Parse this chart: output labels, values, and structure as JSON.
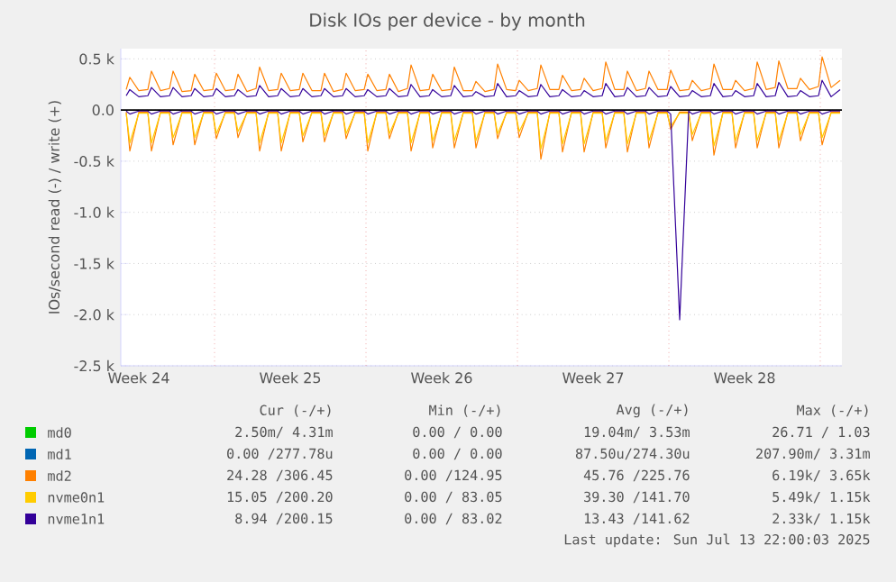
{
  "chart_data": {
    "type": "line",
    "title": "Disk IOs per device - by month",
    "ylabel": "IOs/second read (-) / write (+)",
    "x": [
      "2025-06-11T22:00",
      "2025-06-12T02:00",
      "2025-06-12T12:00",
      "2025-06-12T22:00",
      "2025-06-13T02:00",
      "2025-06-13T12:00",
      "2025-06-13T22:00",
      "2025-06-14T02:00",
      "2025-06-14T12:00",
      "2025-06-14T22:00",
      "2025-06-15T02:00",
      "2025-06-15T12:00",
      "2025-06-15T22:00",
      "2025-06-16T02:00",
      "2025-06-16T12:00",
      "2025-06-16T22:00",
      "2025-06-17T02:00",
      "2025-06-17T12:00",
      "2025-06-17T22:00",
      "2025-06-18T02:00",
      "2025-06-18T12:00",
      "2025-06-18T22:00",
      "2025-06-19T02:00",
      "2025-06-19T12:00",
      "2025-06-19T22:00",
      "2025-06-20T02:00",
      "2025-06-20T12:00",
      "2025-06-20T22:00",
      "2025-06-21T02:00",
      "2025-06-21T12:00",
      "2025-06-21T22:00",
      "2025-06-22T02:00",
      "2025-06-22T12:00",
      "2025-06-22T22:00",
      "2025-06-23T02:00",
      "2025-06-23T12:00",
      "2025-06-23T22:00",
      "2025-06-24T02:00",
      "2025-06-24T12:00",
      "2025-06-24T22:00",
      "2025-06-25T02:00",
      "2025-06-25T12:00",
      "2025-06-25T22:00",
      "2025-06-26T02:00",
      "2025-06-26T12:00",
      "2025-06-26T22:00",
      "2025-06-27T02:00",
      "2025-06-27T12:00",
      "2025-06-27T22:00",
      "2025-06-28T02:00",
      "2025-06-28T12:00",
      "2025-06-28T22:00",
      "2025-06-29T02:00",
      "2025-06-29T12:00",
      "2025-06-29T22:00",
      "2025-06-30T02:00",
      "2025-06-30T12:00",
      "2025-06-30T22:00",
      "2025-07-01T02:00",
      "2025-07-01T12:00",
      "2025-07-01T22:00",
      "2025-07-02T02:00",
      "2025-07-02T12:00",
      "2025-07-02T22:00",
      "2025-07-03T02:00",
      "2025-07-03T12:00",
      "2025-07-03T22:00",
      "2025-07-04T02:00",
      "2025-07-04T12:00",
      "2025-07-04T22:00",
      "2025-07-05T02:00",
      "2025-07-05T12:00",
      "2025-07-05T22:00",
      "2025-07-06T02:00",
      "2025-07-06T12:00",
      "2025-07-06T22:00",
      "2025-07-07T02:00",
      "2025-07-07T12:00",
      "2025-07-07T22:00",
      "2025-07-08T02:00",
      "2025-07-08T12:00",
      "2025-07-08T22:00",
      "2025-07-09T02:00",
      "2025-07-09T12:00",
      "2025-07-09T22:00",
      "2025-07-10T02:00",
      "2025-07-10T12:00",
      "2025-07-10T22:00",
      "2025-07-11T02:00",
      "2025-07-11T12:00",
      "2025-07-11T22:00",
      "2025-07-12T02:00",
      "2025-07-12T12:00",
      "2025-07-12T22:00",
      "2025-07-13T02:00",
      "2025-07-13T12:00",
      "2025-07-13T22:00",
      "2025-07-14T02:00",
      "2025-07-14T12:00",
      "2025-07-14T22:00"
    ],
    "xlim": [
      "2025-06-11T16:00",
      "2025-07-15T00:00"
    ],
    "xticks": [
      {
        "value": "2025-06-12T12:00",
        "label": "Week 24"
      },
      {
        "value": "2025-06-16",
        "label": null
      },
      {
        "value": "2025-06-19T12:00",
        "label": "Week 25"
      },
      {
        "value": "2025-06-23",
        "label": null
      },
      {
        "value": "2025-06-26T12:00",
        "label": "Week 26"
      },
      {
        "value": "2025-06-30",
        "label": null
      },
      {
        "value": "2025-07-03T12:00",
        "label": "Week 27"
      },
      {
        "value": "2025-07-07",
        "label": null
      },
      {
        "value": "2025-07-10T12:00",
        "label": "Week 28"
      },
      {
        "value": "2025-07-14",
        "label": null
      }
    ],
    "ylim": [
      -2500,
      600
    ],
    "yticks": [
      {
        "value": 500,
        "label": "0.5 k"
      },
      {
        "value": 0,
        "label": "0.0"
      },
      {
        "value": -500,
        "label": "-0.5 k"
      },
      {
        "value": -1000,
        "label": "-1.0 k"
      },
      {
        "value": -1500,
        "label": "-1.5 k"
      },
      {
        "value": -2000,
        "label": "-2.0 k"
      },
      {
        "value": -2500,
        "label": "-2.5 k"
      }
    ],
    "grid": true,
    "legend": "bottom",
    "ref_lines": [
      {
        "axis": "y",
        "value": 0,
        "color": "#000000"
      }
    ],
    "series": [
      {
        "name": "md0",
        "color": "#00cc00",
        "values": [
          null,
          null,
          null,
          null,
          null,
          null,
          null,
          null,
          null,
          null,
          null,
          null,
          null,
          null,
          null,
          null,
          null,
          null,
          null,
          null,
          null,
          null,
          null,
          null,
          null,
          null,
          null,
          null,
          null,
          null,
          null,
          null,
          null,
          null,
          null,
          null,
          null,
          null,
          null,
          null,
          null,
          null,
          null,
          null,
          null,
          null,
          null,
          null,
          null,
          null,
          null,
          null,
          null,
          null,
          null,
          null,
          null,
          null,
          null,
          null,
          null,
          null,
          null,
          null,
          null,
          null,
          null,
          null,
          null,
          null,
          null,
          null,
          null,
          null,
          null,
          null,
          null,
          null,
          null,
          null,
          null,
          null,
          null,
          null,
          null,
          null,
          null,
          null,
          null,
          null,
          null,
          null,
          null,
          null,
          null,
          null,
          null,
          null,
          null,
          null
        ]
      },
      {
        "name": "md1",
        "color": "#0066b3",
        "values": [
          null,
          null,
          null,
          null,
          null,
          null,
          null,
          null,
          null,
          null,
          null,
          null,
          null,
          null,
          null,
          null,
          null,
          null,
          null,
          null,
          null,
          null,
          null,
          null,
          null,
          null,
          null,
          null,
          null,
          null,
          null,
          null,
          null,
          null,
          null,
          null,
          null,
          null,
          null,
          null,
          null,
          null,
          null,
          null,
          null,
          null,
          null,
          null,
          null,
          null,
          null,
          null,
          null,
          null,
          null,
          null,
          null,
          null,
          null,
          null,
          null,
          null,
          null,
          null,
          null,
          null,
          null,
          null,
          null,
          null,
          null,
          null,
          null,
          null,
          null,
          null,
          null,
          null,
          null,
          null,
          null,
          null,
          null,
          null,
          null,
          null,
          null,
          null,
          null,
          null,
          null,
          null,
          null,
          null,
          null,
          null,
          null,
          null,
          null,
          null
        ]
      },
      {
        "name": "md2",
        "color": "#ff8000",
        "values": [
          200,
          320,
          190,
          200,
          380,
          190,
          210,
          380,
          180,
          190,
          350,
          190,
          200,
          360,
          190,
          200,
          350,
          180,
          210,
          420,
          190,
          200,
          360,
          190,
          200,
          360,
          190,
          190,
          360,
          180,
          200,
          360,
          190,
          200,
          350,
          190,
          200,
          350,
          180,
          210,
          440,
          190,
          200,
          350,
          190,
          200,
          420,
          190,
          190,
          280,
          180,
          200,
          450,
          200,
          190,
          290,
          190,
          210,
          440,
          200,
          200,
          340,
          190,
          200,
          310,
          190,
          210,
          470,
          200,
          200,
          380,
          190,
          210,
          380,
          200,
          200,
          390,
          190,
          200,
          290,
          190,
          210,
          450,
          200,
          200,
          290,
          190,
          210,
          470,
          200,
          220,
          480,
          210,
          210,
          310,
          200,
          230,
          520,
          220,
          290
        ]
      },
      {
        "color": "#ff8000",
        "values": [
          -20,
          -400,
          -20,
          -20,
          -400,
          -20,
          -20,
          -340,
          -20,
          -20,
          -340,
          -20,
          -20,
          -280,
          -20,
          -20,
          -270,
          -20,
          -20,
          -400,
          -20,
          -20,
          -400,
          -20,
          -20,
          -310,
          -20,
          -20,
          -310,
          -20,
          -20,
          -280,
          -20,
          -20,
          -400,
          -20,
          -20,
          -280,
          -20,
          -20,
          -400,
          -20,
          -20,
          -370,
          -20,
          -20,
          -370,
          -20,
          -20,
          -370,
          -20,
          -20,
          -280,
          -20,
          -20,
          -270,
          -20,
          -20,
          -480,
          -20,
          -20,
          -410,
          -20,
          -20,
          -410,
          -20,
          -20,
          -370,
          -20,
          -20,
          -410,
          -20,
          -20,
          -370,
          -20,
          -20,
          -190,
          -20,
          -20,
          -300,
          -20,
          -20,
          -440,
          -20,
          -20,
          -370,
          -20,
          -20,
          -370,
          -20,
          -20,
          -370,
          -20,
          -20,
          -300,
          -20,
          -20,
          -340,
          -20,
          -20
        ]
      },
      {
        "name": "nvme0n1",
        "color": "#ffcc00",
        "values": [
          -30,
          -320,
          -30,
          -30,
          -320,
          -30,
          -30,
          -270,
          -30,
          -30,
          -270,
          -30,
          -30,
          -230,
          -30,
          -30,
          -210,
          -30,
          -30,
          -320,
          -30,
          -30,
          -320,
          -30,
          -30,
          -250,
          -30,
          -30,
          -250,
          -30,
          -30,
          -230,
          -30,
          -30,
          -320,
          -30,
          -30,
          -230,
          -30,
          -30,
          -320,
          -30,
          -30,
          -300,
          -30,
          -30,
          -300,
          -30,
          -30,
          -300,
          -30,
          -30,
          -230,
          -30,
          -30,
          -210,
          -30,
          -30,
          -380,
          -30,
          -30,
          -330,
          -30,
          -30,
          -330,
          -30,
          -30,
          -300,
          -30,
          -30,
          -330,
          -30,
          -30,
          -300,
          -30,
          -30,
          -160,
          -30,
          -30,
          -240,
          -30,
          -30,
          -350,
          -30,
          -30,
          -300,
          -30,
          -30,
          -300,
          -30,
          -30,
          -300,
          -30,
          -30,
          -240,
          -30,
          -30,
          -270,
          -30,
          -30
        ]
      },
      {
        "name": "nvme1n1",
        "color": "#330099",
        "values": [
          140,
          200,
          130,
          140,
          220,
          130,
          140,
          220,
          130,
          140,
          210,
          130,
          140,
          210,
          130,
          140,
          200,
          130,
          140,
          240,
          130,
          140,
          210,
          130,
          140,
          210,
          130,
          140,
          210,
          130,
          140,
          210,
          130,
          140,
          200,
          130,
          140,
          210,
          130,
          140,
          250,
          130,
          140,
          200,
          130,
          140,
          240,
          130,
          140,
          180,
          130,
          140,
          260,
          130,
          140,
          190,
          130,
          140,
          250,
          130,
          140,
          200,
          130,
          140,
          190,
          130,
          140,
          260,
          130,
          140,
          220,
          130,
          140,
          220,
          130,
          140,
          230,
          130,
          140,
          190,
          130,
          140,
          260,
          130,
          140,
          190,
          130,
          140,
          260,
          130,
          140,
          270,
          130,
          140,
          190,
          130,
          140,
          290,
          130,
          200
        ]
      },
      {
        "color": "#330099",
        "values": [
          -10,
          -40,
          -10,
          -10,
          -40,
          -10,
          -10,
          -40,
          -10,
          -10,
          -40,
          -10,
          -10,
          -40,
          -10,
          -10,
          -40,
          -10,
          -10,
          -40,
          -10,
          -10,
          -40,
          -10,
          -10,
          -40,
          -10,
          -10,
          -40,
          -10,
          -10,
          -40,
          -10,
          -10,
          -40,
          -10,
          -10,
          -40,
          -10,
          -10,
          -40,
          -10,
          -10,
          -40,
          -10,
          -10,
          -40,
          -10,
          -10,
          -40,
          -10,
          -10,
          -40,
          -10,
          -10,
          -40,
          -10,
          -10,
          -40,
          -10,
          -10,
          -40,
          -10,
          -10,
          -40,
          -10,
          -10,
          -40,
          -10,
          -10,
          -40,
          -10,
          -10,
          -40,
          -10,
          -10,
          -40,
          -2050,
          -10,
          -40,
          -10,
          -10,
          -40,
          -10,
          -10,
          -40,
          -10,
          -10,
          -40,
          -10,
          -10,
          -40,
          -10,
          -10,
          -40,
          -10,
          -10,
          -40,
          -10,
          -10
        ]
      }
    ],
    "annotations": [
      "Cur (-/+)",
      "Min (-/+)",
      "Avg (-/+)",
      "Max (-/+)",
      "2.50m/ 4.31m",
      "0.00 / 0.00",
      "19.04m/ 3.53m",
      "26.71 / 1.03",
      "0.00 /277.78u",
      "0.00 / 0.00",
      "87.50u/274.30u",
      "207.90m/ 3.31m",
      "24.28 /306.45",
      "0.00 /124.95",
      "45.76 /225.76",
      "6.19k/ 3.65k",
      "15.05 /200.20",
      "0.00 / 83.05",
      "39.30 /141.70",
      "5.49k/ 1.15k",
      "8.94 /200.15",
      "0.00 / 83.02",
      "13.43 /141.62",
      "2.33k/ 1.15k",
      "Last update: Sun Jul 13 22:00:03 2025"
    ]
  }
}
